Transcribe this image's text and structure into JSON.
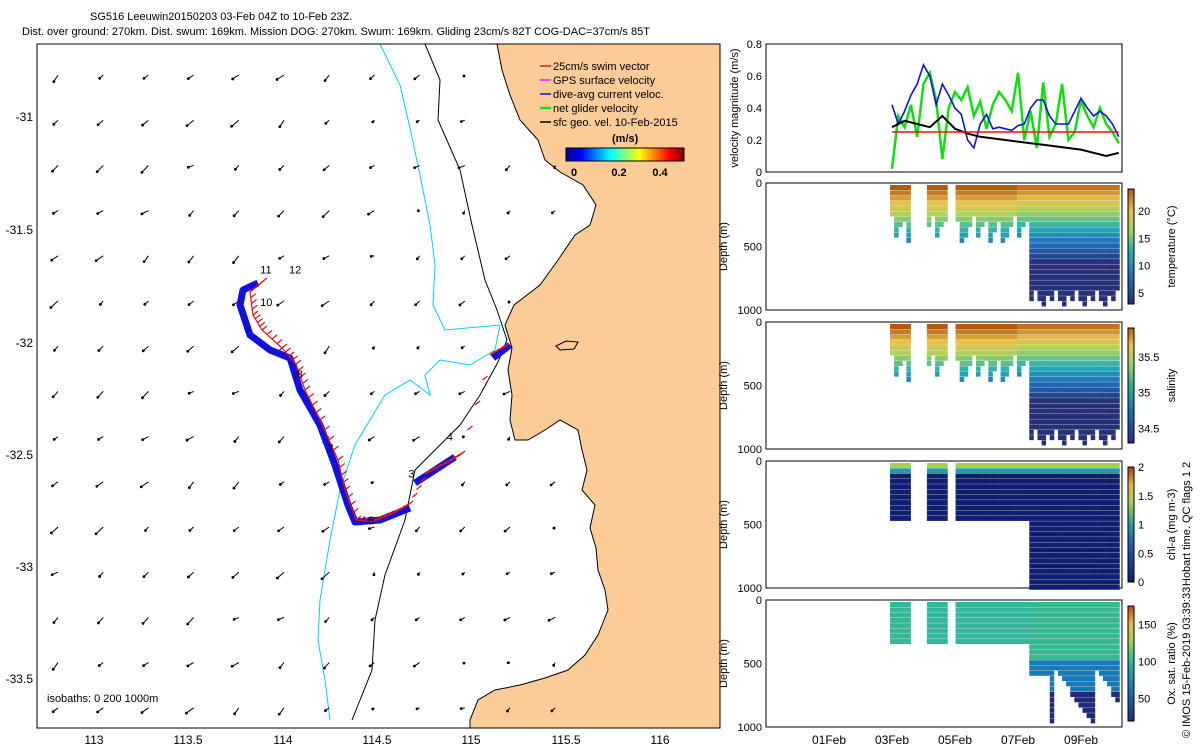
{
  "header": {
    "line1": "SG516 Leeuwin20150203 03-Feb 04Z to 10-Feb 23Z.",
    "line2": "Dist. over ground: 270km. Dist. swum: 169km. Mission DOG: 270km. Swum: 169km. Gliding 23cm/s 82T COG-DAC=37cm/s 85T"
  },
  "colors": {
    "land": "#fbcb98",
    "bathy": "#00d2ee",
    "swim": "#ee1111",
    "track": "#1111dd",
    "gps": "#ee22ee",
    "net": "#11dd11",
    "black": "#000000"
  },
  "map": {
    "lon_range": [
      112.75,
      116.3
    ],
    "lat_range": [
      -33.7,
      -30.75
    ],
    "lon_ticks": [
      "113",
      "113.5",
      "114",
      "114.5",
      "115",
      "115.5",
      "116"
    ],
    "lat_ticks": [
      "-31",
      "-31.5",
      "-32",
      "-32.5",
      "-33",
      "-33.5"
    ],
    "legend": [
      "25cm/s swim vector",
      "GPS surface velocity",
      "dive-avg current veloc.",
      "net glider velocity",
      "sfc geo. vel. 10-Feb-2015"
    ],
    "colorbar_unit": "(m/s)",
    "colorbar_ticks": [
      "0",
      "0.2",
      "0.4"
    ],
    "isobath_label": "isobaths: 0   200  1000m",
    "day_labels": [
      {
        "t": "3",
        "lon": 114.68,
        "lat": -32.62
      },
      {
        "t": "4",
        "lon": 114.88,
        "lat": -32.46
      },
      {
        "t": "6",
        "lon": 114.47,
        "lat": -32.82
      },
      {
        "t": "7",
        "lon": 114.26,
        "lat": -32.51
      },
      {
        "t": "8",
        "lon": 114.1,
        "lat": -32.19
      },
      {
        "t": "10",
        "lon": 113.91,
        "lat": -31.88
      },
      {
        "t": "11",
        "lon": 113.91,
        "lat": -31.74
      },
      {
        "t": "12",
        "lon": 114.06,
        "lat": -31.74
      }
    ]
  },
  "chart_data": [
    {
      "type": "line",
      "title": "velocity magnitude",
      "ylabel": "velocity magnitude (m/s)",
      "ylim": [
        0,
        0.8
      ],
      "yticks": [
        "0",
        "0.2",
        "0.4",
        "0.6",
        "0.8"
      ],
      "x_days_range": [
        -1.0,
        10.3
      ],
      "series": [
        {
          "name": "net glider velocity",
          "color": "#11dd11",
          "x": [
            3.0,
            3.2,
            3.4,
            3.6,
            3.8,
            4.0,
            4.2,
            4.4,
            4.6,
            4.8,
            5.0,
            5.2,
            5.4,
            5.6,
            5.8,
            6.0,
            6.2,
            6.4,
            6.6,
            6.8,
            7.0,
            7.2,
            7.4,
            7.6,
            7.8,
            8.0,
            8.2,
            8.4,
            8.6,
            8.8,
            9.0,
            9.2,
            9.4,
            9.6,
            9.8,
            10.0,
            10.2
          ],
          "values": [
            0.02,
            0.35,
            0.28,
            0.42,
            0.22,
            0.55,
            0.62,
            0.45,
            0.08,
            0.4,
            0.5,
            0.45,
            0.53,
            0.35,
            0.44,
            0.27,
            0.42,
            0.5,
            0.45,
            0.38,
            0.62,
            0.2,
            0.38,
            0.15,
            0.56,
            0.22,
            0.3,
            0.55,
            0.2,
            0.25,
            0.45,
            0.35,
            0.28,
            0.4,
            0.3,
            0.25,
            0.18
          ]
        },
        {
          "name": "dive-avg current veloc.",
          "color": "#1111dd",
          "x": [
            3.0,
            3.2,
            3.4,
            3.6,
            3.8,
            4.0,
            4.2,
            4.4,
            4.6,
            4.8,
            5.0,
            5.2,
            5.4,
            5.6,
            5.8,
            6.0,
            6.2,
            6.4,
            6.6,
            6.8,
            7.0,
            7.2,
            7.4,
            7.6,
            7.8,
            8.0,
            8.2,
            8.4,
            8.6,
            8.8,
            9.0,
            9.2,
            9.4,
            9.6,
            9.8,
            10.0,
            10.2
          ],
          "values": [
            0.42,
            0.3,
            0.38,
            0.48,
            0.55,
            0.67,
            0.6,
            0.42,
            0.55,
            0.48,
            0.4,
            0.36,
            0.2,
            0.15,
            0.3,
            0.36,
            0.27,
            0.28,
            0.27,
            0.26,
            0.29,
            0.3,
            0.4,
            0.45,
            0.45,
            0.35,
            0.3,
            0.3,
            0.3,
            0.38,
            0.46,
            0.4,
            0.35,
            0.38,
            0.35,
            0.3,
            0.22
          ]
        },
        {
          "name": "sfc geo. vel.",
          "color": "#000000",
          "x": [
            3.0,
            3.4,
            3.8,
            4.2,
            4.6,
            5.0,
            5.4,
            5.8,
            6.2,
            6.6,
            7.0,
            7.4,
            7.8,
            8.2,
            8.6,
            9.0,
            9.4,
            9.8,
            10.2
          ],
          "values": [
            0.28,
            0.32,
            0.3,
            0.28,
            0.35,
            0.27,
            0.24,
            0.22,
            0.21,
            0.2,
            0.19,
            0.18,
            0.17,
            0.16,
            0.15,
            0.14,
            0.12,
            0.1,
            0.12
          ]
        },
        {
          "name": "25cm/s reference",
          "color": "#ee1111",
          "x": [
            3.0,
            10.2
          ],
          "values": [
            0.25,
            0.25
          ]
        }
      ]
    },
    {
      "type": "heatmap",
      "ylabel": "Depth (m)",
      "yticks": [
        "0",
        "500",
        "1000"
      ],
      "colorbar_label": "temperature (°C)",
      "cticks": [
        "5",
        "10",
        "15",
        "20"
      ],
      "vrange": [
        3,
        24
      ],
      "field": "temp"
    },
    {
      "type": "heatmap",
      "ylabel": "Depth (m)",
      "yticks": [
        "0",
        "500",
        "1000"
      ],
      "colorbar_label": "salinity",
      "cticks": [
        "34.5",
        "35",
        "35.5"
      ],
      "vrange": [
        34.3,
        35.9
      ],
      "field": "sal"
    },
    {
      "type": "heatmap",
      "ylabel": "Depth (m)",
      "yticks": [
        "0",
        "500",
        "1000"
      ],
      "colorbar_label": "chl-a (mg m-3)",
      "cticks": [
        "0",
        "0.5",
        "1",
        "1.5",
        "2"
      ],
      "vrange": [
        0,
        2
      ],
      "field": "chl"
    },
    {
      "type": "heatmap",
      "ylabel": "Depth (m)",
      "yticks": [
        "0",
        "500",
        "1000"
      ],
      "colorbar_label": "Ox. sat. ratio (%)",
      "cticks": [
        "50",
        "100",
        "150"
      ],
      "vrange": [
        20,
        175
      ],
      "field": "oxy"
    }
  ],
  "time_axis": {
    "labels": [
      "01Feb",
      "03Feb",
      "05Feb",
      "07Feb",
      "09Feb"
    ],
    "days": [
      1,
      3,
      5,
      7,
      9
    ]
  },
  "side_notes": {
    "qc": "Hobart time. QC flags 1  2",
    "credit": "© IMOS 15-Feb-2019 03:39:33"
  }
}
